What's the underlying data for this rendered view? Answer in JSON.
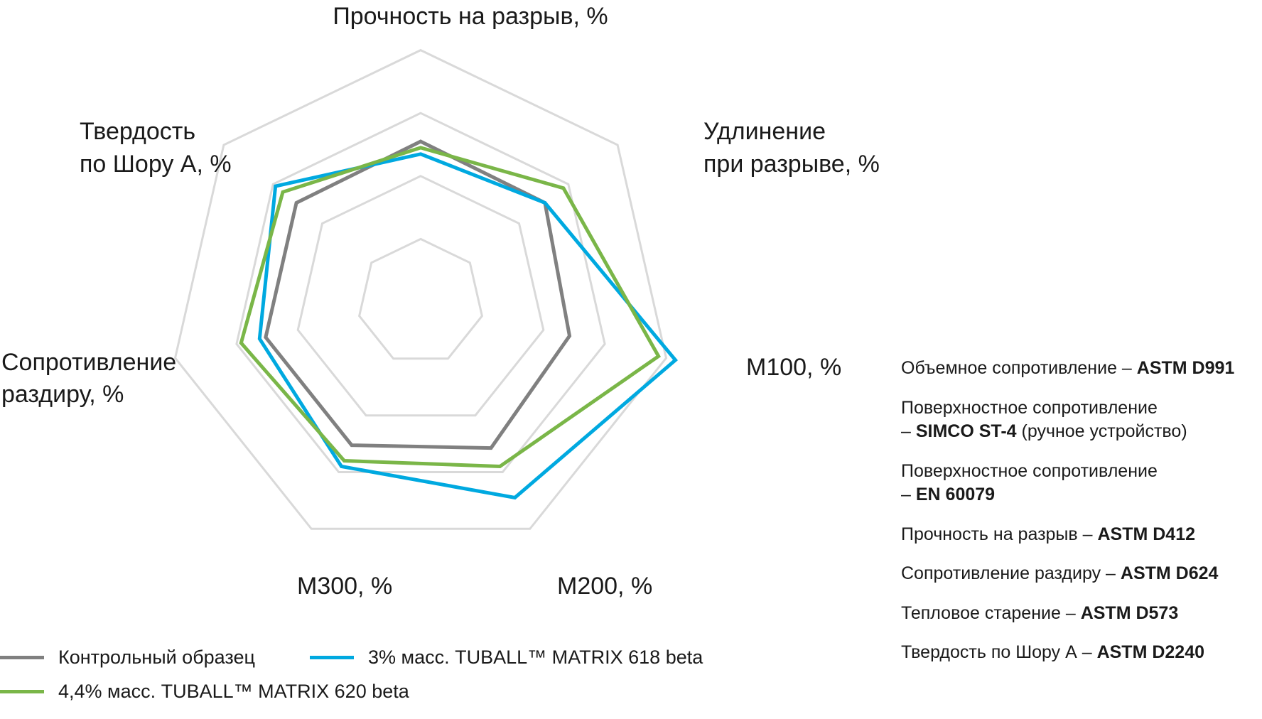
{
  "chart_data": {
    "type": "radar",
    "axes": [
      {
        "label": [
          "Прочность на разрыв, %"
        ],
        "bold_suffix": false
      },
      {
        "label": [
          "Удлинение",
          "при разрыве, %"
        ]
      },
      {
        "label": [
          "M100, %"
        ]
      },
      {
        "label": [
          "M200, %"
        ]
      },
      {
        "label": [
          "M300, %"
        ]
      },
      {
        "label": [
          "Сопротивление",
          "раздиру, %"
        ]
      },
      {
        "label": [
          "Твердость",
          "по Шору А, %"
        ]
      }
    ],
    "axis_labels": {
      "tensile": "Прочность на разрыв, %",
      "elongation_1": "Удлинение",
      "elongation_2": "при разрыве, %",
      "m100": "M100, %",
      "m200": "M200, %",
      "m300": "M300, %",
      "tear_1": "Сопротивление",
      "tear_2": "раздиру, %",
      "hardness_1": "Твердость",
      "hardness_2": "по Шору А, %"
    },
    "rings": [
      0.2,
      0.4,
      0.6,
      0.8
    ],
    "grid": true,
    "series": [
      {
        "name": "Контрольный образец",
        "color": "#808080",
        "values": [
          0.51,
          0.505,
          0.485,
          0.515,
          0.505,
          0.505,
          0.505
        ]
      },
      {
        "name": "3% масс. TUBALL™ MATRIX 618 beta",
        "color": "#00a9e0",
        "values": [
          0.47,
          0.505,
          0.83,
          0.69,
          0.58,
          0.525,
          0.59
        ]
      },
      {
        "name": "4,4% масс. TUBALL™ MATRIX 620 beta",
        "color": "#7ab648",
        "values": [
          0.49,
          0.58,
          0.775,
          0.58,
          0.56,
          0.585,
          0.56
        ]
      }
    ],
    "legend_position": "bottom-left"
  },
  "legend": {
    "items": [
      {
        "label": "Контрольный образец",
        "color": "#808080"
      },
      {
        "label": "3% масс. TUBALL™ MATRIX 618 beta",
        "color": "#00a9e0"
      },
      {
        "label": "4,4% масс. TUBALL™ MATRIX 620 beta",
        "color": "#7ab648"
      }
    ]
  },
  "standards": [
    {
      "lines": [
        {
          "text": "Объемное сопротивление – ",
          "bold": "ASTM D991"
        }
      ]
    },
    {
      "lines": [
        {
          "text": "Поверхностное сопротивление",
          "bold": ""
        },
        {
          "text": "– ",
          "bold": "SIMCO ST-4",
          "after": " (ручное устройство)"
        }
      ]
    },
    {
      "lines": [
        {
          "text": "Поверхностное сопротивление",
          "bold": ""
        },
        {
          "text": "– ",
          "bold": "EN 60079"
        }
      ]
    },
    {
      "lines": [
        {
          "text": "Прочность на разрыв – ",
          "bold": "ASTM D412"
        }
      ]
    },
    {
      "lines": [
        {
          "text": "Сопротивление раздиру – ",
          "bold": "ASTM D624"
        }
      ]
    },
    {
      "lines": [
        {
          "text": "Тепловое старение – ",
          "bold": "ASTM D573"
        }
      ]
    },
    {
      "lines": [
        {
          "text": "Твердость по Шору А – ",
          "bold": "ASTM D2240"
        }
      ]
    }
  ],
  "colors": {
    "grid": "#d9d9d9",
    "text": "#1a1a1a"
  }
}
